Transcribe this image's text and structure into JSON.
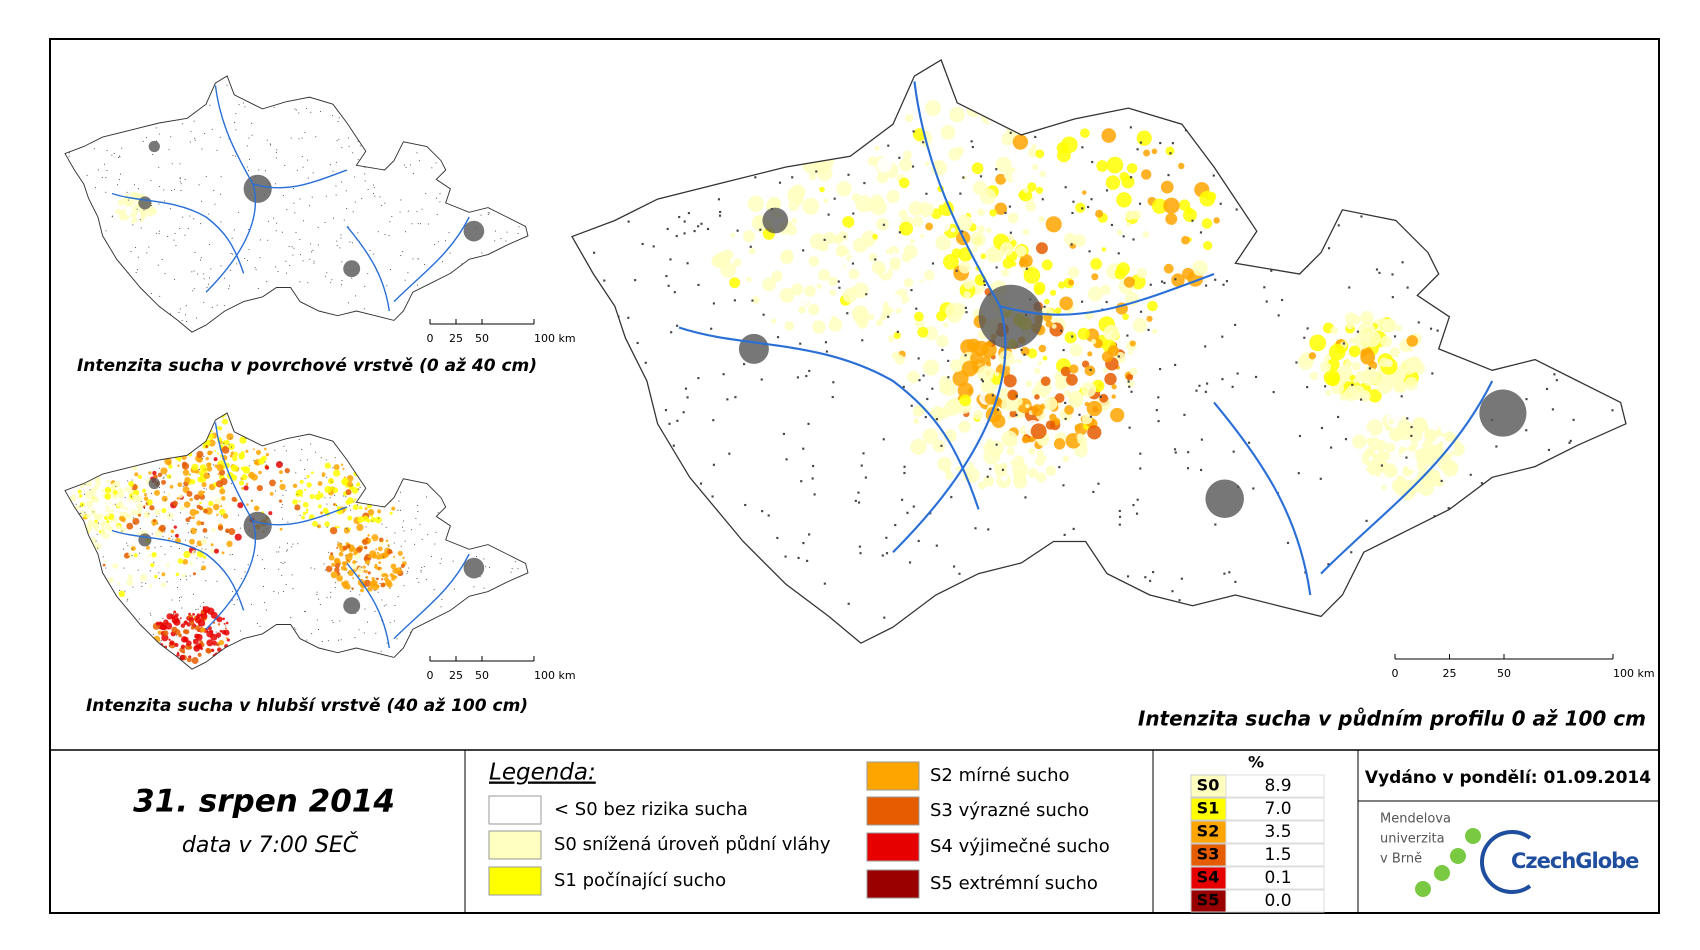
{
  "maps": [
    {
      "title": "Intenzita sucha v povrchové vrstvě (0 až 40 cm)",
      "scale_labels": [
        "0",
        "25",
        "50",
        "100 km"
      ]
    },
    {
      "title": "Intenzita sucha v hlubší vrstvě (40 až 100 cm)",
      "scale_labels": [
        "0",
        "25",
        "50",
        "100 km"
      ]
    },
    {
      "title": "Intenzita sucha v půdním profilu 0 až 100 cm",
      "scale_labels": [
        "0",
        "25",
        "50",
        "100 km"
      ]
    }
  ],
  "date": {
    "title": "31. srpen 2014",
    "subtitle": "data v 7:00 SEČ"
  },
  "legend": {
    "title": "Legenda:",
    "items": [
      {
        "label": "< S0 bez rizika sucha",
        "color": "#ffffff"
      },
      {
        "label": "S0 snížená úroveň půdní vláhy",
        "color": "#ffffc0"
      },
      {
        "label": "S1 počínající sucho",
        "color": "#ffff00"
      },
      {
        "label": "S2 mírné sucho",
        "color": "#ffa500"
      },
      {
        "label": "S3 výrazné sucho",
        "color": "#e65c00"
      },
      {
        "label": "S4 výjimečné sucho",
        "color": "#e60000"
      },
      {
        "label": "S5 extrémní sucho",
        "color": "#990000"
      }
    ]
  },
  "stats": {
    "header": "%",
    "rows": [
      [
        "S0",
        "8.9"
      ],
      [
        "S1",
        "7.0"
      ],
      [
        "S2",
        "3.5"
      ],
      [
        "S3",
        "1.5"
      ],
      [
        "S4",
        "0.1"
      ],
      [
        "S5",
        "0.0"
      ]
    ]
  },
  "issued": "Vydáno v pondělí: 01.09.2014",
  "logos": {
    "mendel": [
      "Mendelova",
      "univerzita",
      "v Brně"
    ],
    "czechglobe": "CzechGlobe"
  }
}
